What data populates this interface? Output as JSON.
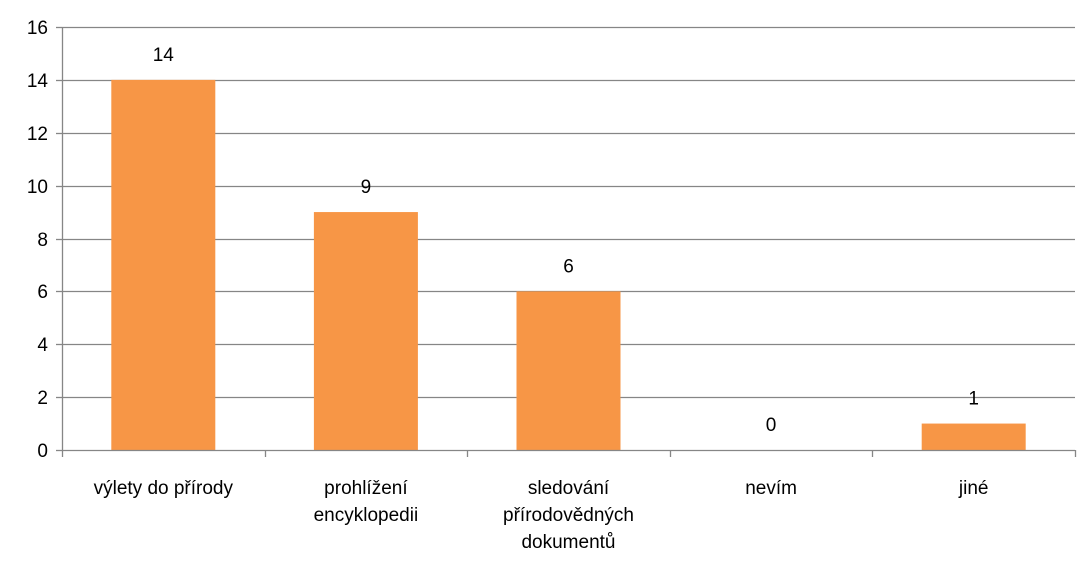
{
  "chart_data": {
    "type": "bar",
    "title": "",
    "xlabel": "",
    "ylabel": "",
    "categories": [
      [
        "výlety do přírody"
      ],
      [
        "prohlížení",
        "encyklopedii"
      ],
      [
        "sledování",
        "přírodovědných",
        "dokumentů"
      ],
      [
        "nevím"
      ],
      [
        "jiné"
      ]
    ],
    "values": [
      14,
      9,
      6,
      0,
      1
    ],
    "data_labels": [
      "14",
      "9",
      "6",
      "0",
      "1"
    ],
    "ylim": [
      0,
      16
    ],
    "yticks": [
      0,
      2,
      4,
      6,
      8,
      10,
      12,
      14,
      16
    ],
    "grid": true,
    "legend": "none",
    "colors": {
      "bar": "#F79646",
      "grid": "#868686",
      "axis": "#868686",
      "text": "#000000"
    }
  }
}
